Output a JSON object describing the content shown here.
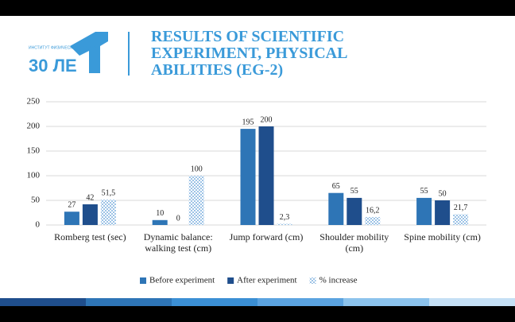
{
  "logo": {
    "caption": "ИНСТИТУТ ФИЗИЧЕСКОЙ КУЛЬТУРЫ",
    "text": "30 ЛЕ"
  },
  "chart_data": {
    "type": "bar",
    "title": "RESULTS OF SCIENTIFIC EXPERIMENT, PHYSICAL ABILITIES (EG-2)",
    "categories": [
      "Romberg test (sec)",
      "Dynamic balance: walking test (cm)",
      "Jump forward (cm)",
      "Shoulder mobility (cm)",
      "Spine mobility (cm)"
    ],
    "series": [
      {
        "name": "Before experiment",
        "color": "#2e75b6",
        "values": [
          27,
          10,
          195,
          65,
          55
        ]
      },
      {
        "name": "After experiment",
        "color": "#1f4e8c",
        "values": [
          42,
          0,
          200,
          55,
          50
        ]
      },
      {
        "name": "% increase",
        "color": "#9dc3e6",
        "pattern": "dots",
        "values": [
          51.5,
          100,
          2.3,
          16.2,
          21.7
        ],
        "value_labels": [
          "51,5",
          "100",
          "2,3",
          "16,2",
          "21,7"
        ]
      }
    ],
    "ylim": [
      0,
      250
    ],
    "yticks": [
      0,
      50,
      100,
      150,
      200,
      250
    ],
    "grid": true,
    "legend": "bottom"
  }
}
